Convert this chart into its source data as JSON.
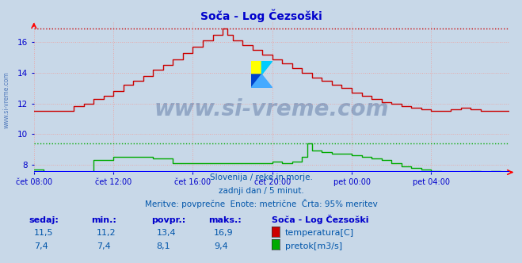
{
  "title": "Soča - Log Čezsoški",
  "bg_color": "#c8d8e8",
  "plot_bg_color": "#c8d8e8",
  "grid_color_h": "#e8b8b8",
  "grid_color_v": "#e8b8b8",
  "xlabel_color": "#0000cc",
  "title_color": "#0000cc",
  "text_color": "#0055aa",
  "watermark": "www.si-vreme.com",
  "subtitle1": "Slovenija / reke in morje.",
  "subtitle2": "zadnji dan / 5 minut.",
  "subtitle3": "Meritve: povprečne  Enote: metrične  Črta: 95% meritev",
  "table_headers": [
    "sedaj:",
    "min.:",
    "povpr.:",
    "maks.:",
    "Soča - Log Čezsoški"
  ],
  "row1": [
    "11,5",
    "11,2",
    "13,4",
    "16,9"
  ],
  "row2": [
    "7,4",
    "7,4",
    "8,1",
    "9,4"
  ],
  "legend1": "temperatura[C]",
  "legend2": "pretok[m3/s]",
  "legend1_color": "#cc0000",
  "legend2_color": "#00aa00",
  "x_ticks": [
    "čet 08:00",
    "čet 12:00",
    "čet 16:00",
    "čet 20:00",
    "pet 00:00",
    "pet 04:00"
  ],
  "x_tick_positions": [
    0,
    48,
    96,
    144,
    192,
    240
  ],
  "ylim_low": 7.5,
  "ylim_high": 17.3,
  "y_ticks": [
    8,
    10,
    12,
    14,
    16
  ],
  "hline_red_y": 16.9,
  "hline_green_y": 9.4,
  "n_points": 288,
  "watermark_color": "#1a3a7a",
  "watermark_alpha": 0.3,
  "left_label": "www.si-vreme.com"
}
